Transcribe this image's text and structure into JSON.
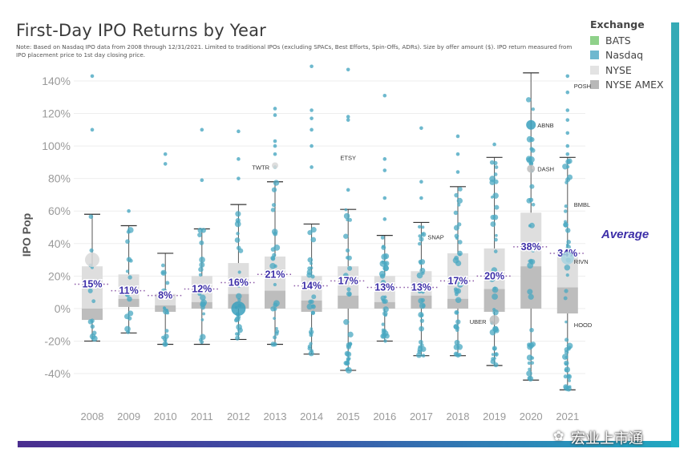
{
  "chart_data": {
    "type": "box-scatter",
    "title": "First-Day IPO Returns by Year",
    "note": "Note: Based on Nasdaq IPO data from 2008 through 12/31/2021. Limited to traditional IPOs (excluding SPACs, Best Efforts, Spin-Offs, ADRs). Size by offer amount ($). IPO return measured from IPO placement price to 1st day closing price.",
    "ylabel": "IPO Pop",
    "ylim": [
      -50,
      150
    ],
    "yticks": [
      -40,
      -20,
      0,
      20,
      40,
      60,
      80,
      100,
      120,
      140
    ],
    "ytick_labels": [
      "-40%",
      "-20%",
      "0%",
      "20%",
      "40%",
      "60%",
      "80%",
      "100%",
      "120%",
      "140%"
    ],
    "categories": [
      "2008",
      "2009",
      "2010",
      "2011",
      "2012",
      "2013",
      "2014",
      "2015",
      "2016",
      "2017",
      "2018",
      "2019",
      "2020",
      "2021"
    ],
    "average_label": "Average",
    "averages": [
      15,
      11,
      8,
      12,
      16,
      21,
      14,
      17,
      13,
      13,
      17,
      20,
      38,
      34
    ],
    "average_labels": [
      "15%",
      "11%",
      "8%",
      "12%",
      "16%",
      "21%",
      "14%",
      "17%",
      "13%",
      "13%",
      "17%",
      "20%",
      "38%",
      "34%"
    ],
    "boxes": [
      {
        "wlo": -20,
        "q1": -7,
        "med": 0,
        "q3": 26,
        "whi": 58
      },
      {
        "wlo": -15,
        "q1": 1,
        "med": 6,
        "q3": 21,
        "whi": 51
      },
      {
        "wlo": -22,
        "q1": -2,
        "med": 2,
        "q3": 9,
        "whi": 34
      },
      {
        "wlo": -22,
        "q1": 0,
        "med": 4,
        "q3": 20,
        "whi": 49
      },
      {
        "wlo": -19,
        "q1": 0,
        "med": 9,
        "q3": 28,
        "whi": 64
      },
      {
        "wlo": -22,
        "q1": 0,
        "med": 11,
        "q3": 32,
        "whi": 78
      },
      {
        "wlo": -28,
        "q1": -2,
        "med": 5,
        "q3": 20,
        "whi": 52
      },
      {
        "wlo": -38,
        "q1": 0,
        "med": 8,
        "q3": 26,
        "whi": 61
      },
      {
        "wlo": -20,
        "q1": 0,
        "med": 4,
        "q3": 20,
        "whi": 45
      },
      {
        "wlo": -29,
        "q1": 0,
        "med": 8,
        "q3": 23,
        "whi": 53
      },
      {
        "wlo": -29,
        "q1": 0,
        "med": 6,
        "q3": 34,
        "whi": 75
      },
      {
        "wlo": -35,
        "q1": -2,
        "med": 12,
        "q3": 37,
        "whi": 93
      },
      {
        "wlo": -44,
        "q1": 0,
        "med": 26,
        "q3": 59,
        "whi": 145
      },
      {
        "wlo": -50,
        "q1": -3,
        "med": 13,
        "q3": 34,
        "whi": 93
      }
    ],
    "outliers": [
      {
        "year": "2008",
        "values": [
          110,
          143
        ]
      },
      {
        "year": "2009",
        "values": [
          60
        ]
      },
      {
        "year": "2010",
        "values": [
          89,
          95
        ]
      },
      {
        "year": "2011",
        "values": [
          79,
          110
        ]
      },
      {
        "year": "2012",
        "values": [
          80,
          92,
          109
        ]
      },
      {
        "year": "2013",
        "values": [
          87,
          95,
          100,
          103,
          119,
          123
        ]
      },
      {
        "year": "2014",
        "values": [
          87,
          100,
          110,
          117,
          122,
          149
        ]
      },
      {
        "year": "2015",
        "values": [
          73,
          116,
          118,
          147
        ]
      },
      {
        "year": "2016",
        "values": [
          55,
          68,
          85,
          92,
          131
        ]
      },
      {
        "year": "2017",
        "values": [
          68,
          78,
          111
        ]
      },
      {
        "year": "2018",
        "values": [
          84,
          95,
          106
        ]
      },
      {
        "year": "2019",
        "values": [
          101
        ]
      },
      {
        "year": "2021",
        "values": [
          95,
          100,
          108,
          116,
          122,
          133,
          143
        ]
      }
    ],
    "annotations": [
      {
        "label": "TWTR",
        "year": "2013",
        "value": 87
      },
      {
        "label": "ETSY",
        "year": "2015",
        "value": 93
      },
      {
        "label": "SNAP",
        "year": "2017",
        "value": 44
      },
      {
        "label": "UBER",
        "year": "2019",
        "value": -8
      },
      {
        "label": "ABNB",
        "year": "2020",
        "value": 113
      },
      {
        "label": "DASH",
        "year": "2020",
        "value": 86
      },
      {
        "label": "BMBL",
        "year": "2021",
        "value": 64
      },
      {
        "label": "RIVN",
        "year": "2021",
        "value": 29
      },
      {
        "label": "HOOD",
        "year": "2021",
        "value": -10
      },
      {
        "label": "POSH",
        "year": "2021",
        "value": 137
      }
    ],
    "legend_title": "Exchange",
    "legend": [
      {
        "name": "BATS",
        "color": "#8fd18a"
      },
      {
        "name": "Nasdaq",
        "color": "#6fb8cf"
      },
      {
        "name": "NYSE",
        "color": "#e3e3e3"
      },
      {
        "name": "NYSE AMEX",
        "color": "#b8b8b8"
      }
    ]
  },
  "watermark": "宏业上市通"
}
